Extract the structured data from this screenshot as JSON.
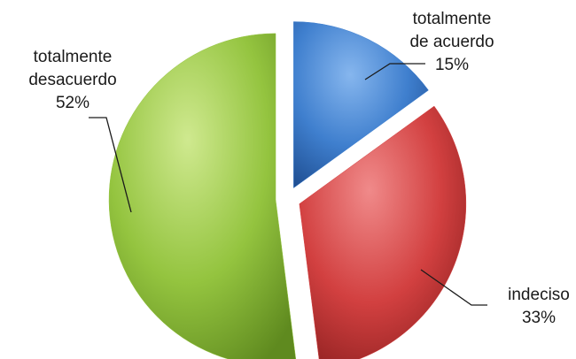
{
  "chart_data": {
    "type": "pie",
    "slices": [
      {
        "label_lines": [
          "totalmente",
          "de acuerdo"
        ],
        "value": 15,
        "value_label": "15%",
        "color": "#3f7fce"
      },
      {
        "label_lines": [
          "indeciso"
        ],
        "value": 33,
        "value_label": "33%",
        "color": "#d24040"
      },
      {
        "label_lines": [
          "totalmente",
          "desacuerdo"
        ],
        "value": 52,
        "value_label": "52%",
        "color": "#94c43f"
      }
    ],
    "exploded": true,
    "legend": "none",
    "data_labels": "outside with leader lines"
  }
}
